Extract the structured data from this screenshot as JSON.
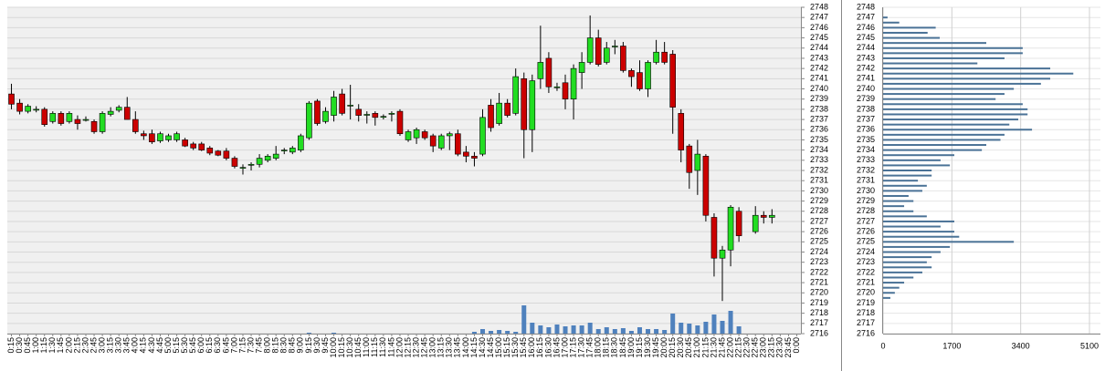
{
  "chart_data": [
    {
      "type": "candlestick",
      "x": [
        "0:15",
        "0:30",
        "0:45",
        "1:00",
        "1:15",
        "1:30",
        "1:45",
        "2:00",
        "2:15",
        "2:30",
        "2:45",
        "3:00",
        "3:15",
        "3:30",
        "3:45",
        "4:00",
        "4:15",
        "4:30",
        "4:45",
        "5:00",
        "5:15",
        "5:30",
        "5:45",
        "6:00",
        "6:15",
        "6:30",
        "6:45",
        "7:00",
        "7:15",
        "7:30",
        "7:45",
        "8:00",
        "8:15",
        "8:30",
        "8:45",
        "9:00",
        "9:15",
        "9:30",
        "9:45",
        "10:00",
        "10:15",
        "10:30",
        "10:45",
        "11:00",
        "11:15",
        "11:30",
        "11:45",
        "12:00",
        "12:15",
        "12:30",
        "12:45",
        "13:00",
        "13:15",
        "13:30",
        "13:45",
        "14:00",
        "14:15",
        "14:30",
        "14:45",
        "15:00",
        "15:15",
        "15:30",
        "15:45",
        "16:00",
        "16:15",
        "16:30",
        "16:45",
        "17:00",
        "17:15",
        "17:30",
        "17:45",
        "18:00",
        "18:15",
        "18:30",
        "18:45",
        "19:00",
        "19:15",
        "19:30",
        "19:45",
        "20:00",
        "20:15",
        "20:30",
        "20:45",
        "21:00",
        "21:15",
        "21:30",
        "21:45",
        "22:00",
        "22:15",
        "22:30",
        "22:45",
        "23:00",
        "23:15",
        "23:30",
        "23:45",
        "0:00"
      ],
      "open": [
        2739.5,
        2738.6,
        2737.8,
        2738,
        2738,
        2736.8,
        2737.6,
        2736.8,
        2737,
        2737,
        2736.8,
        2735.8,
        2737.5,
        2737.9,
        2738.2,
        2737,
        2735.6,
        2735.6,
        2734.9,
        2735,
        2735,
        2735,
        2734.6,
        2734.6,
        2734.2,
        2733.9,
        2733.9,
        2733.2,
        2732.3,
        2732.6,
        2732.6,
        2733,
        2733.2,
        2734,
        2733.8,
        2734,
        2735.2,
        2738.8,
        2736.8,
        2737.4,
        2739.5,
        2738.4,
        2738,
        2737.5,
        2737.6,
        2737.3,
        2737.6,
        2737.8,
        2735,
        2735.2,
        2735.8,
        2735.4,
        2734.2,
        2735.4,
        2735.6,
        2733.8,
        2733.4,
        2733.6,
        2738.4,
        2736.6,
        2738.6,
        2737.6,
        2741,
        2736,
        2741,
        2743,
        2740.2,
        2740.6,
        2739,
        2741.6,
        2742.6,
        2745,
        2742.6,
        2744.2,
        2744.2,
        2741.8,
        2741.6,
        2740,
        2742.6,
        2743.6,
        2743.4,
        2737.6,
        2734.4,
        2732,
        2733.4,
        2727.4,
        2723.4,
        2724.2,
        2728,
        null,
        2726,
        2727.6,
        2727.4,
        null,
        null,
        null
      ],
      "high": [
        2740.5,
        2739,
        2738.5,
        2738.3,
        2738.2,
        2737.8,
        2737.8,
        2737.8,
        2737.4,
        2737.3,
        2737,
        2737.8,
        2738.2,
        2738.4,
        2739.2,
        2737.8,
        2735.9,
        2736,
        2735.8,
        2735.6,
        2735.8,
        2735.2,
        2734.8,
        2734.8,
        2734.4,
        2734,
        2734.2,
        2733.4,
        2732.6,
        2732.8,
        2733.6,
        2733.6,
        2734.4,
        2734.2,
        2734.4,
        2735.6,
        2738.8,
        2739,
        2738.2,
        2739.8,
        2740,
        2740.4,
        2738.5,
        2737.8,
        2737.8,
        2737.5,
        2737.8,
        2738,
        2736,
        2736.2,
        2736,
        2735.6,
        2735.6,
        2735.8,
        2736,
        2734.4,
        2733.8,
        2738,
        2739,
        2739.6,
        2739,
        2742,
        2741.6,
        2741.4,
        2746.2,
        2743.6,
        2740.6,
        2741.4,
        2742.4,
        2743.6,
        2747.2,
        2745.8,
        2744.6,
        2744.8,
        2744.6,
        2742,
        2742.8,
        2742.8,
        2744.8,
        2744.6,
        2743.8,
        2738,
        2734.6,
        2735,
        2733.6,
        2727.8,
        2724.6,
        2728.6,
        2728.4,
        null,
        2728.5,
        2728,
        2728.2,
        null,
        null,
        null
      ],
      "low": [
        2738,
        2737.5,
        2737.6,
        2737.7,
        2736.3,
        2736.6,
        2736.4,
        2736.6,
        2736,
        2736.8,
        2735.6,
        2735.6,
        2737.3,
        2737.7,
        2737,
        2735.6,
        2735,
        2734.6,
        2734.7,
        2734.8,
        2734.8,
        2734.3,
        2734,
        2733.9,
        2733.5,
        2733.4,
        2733,
        2732.2,
        2731.6,
        2732,
        2732.3,
        2732.8,
        2733,
        2733.6,
        2733.6,
        2733.8,
        2735,
        2736.4,
        2736.6,
        2736.8,
        2737.4,
        2737,
        2736.8,
        2736.6,
        2736.4,
        2737,
        2736.8,
        2735.4,
        2734.8,
        2734.6,
        2735,
        2733.8,
        2734,
        2734,
        2733.4,
        2732.8,
        2732.4,
        2733.4,
        2735.8,
        2736.4,
        2737.2,
        2737.4,
        2733.2,
        2733.8,
        2740,
        2739.6,
        2739.8,
        2738,
        2737,
        2740,
        2742.4,
        2742.2,
        2742.4,
        2743.4,
        2741.6,
        2740.2,
        2739.8,
        2739.2,
        2742.4,
        2742.4,
        2735.6,
        2732.8,
        2730.2,
        2729.6,
        2727,
        2721.6,
        2719.2,
        2722.6,
        2725,
        null,
        2725.8,
        2726.8,
        2726.8,
        null,
        null,
        null
      ],
      "close": [
        2738.5,
        2737.8,
        2738.3,
        2738,
        2736.5,
        2737.6,
        2736.6,
        2737.6,
        2736.6,
        2737,
        2735.8,
        2737.6,
        2737.8,
        2738.2,
        2737,
        2735.8,
        2735.4,
        2734.8,
        2735.6,
        2735.4,
        2735.6,
        2734.4,
        2734.2,
        2734,
        2733.7,
        2733.5,
        2733.2,
        2732.4,
        2732.3,
        2732.6,
        2733.2,
        2733.4,
        2733.6,
        2734,
        2734.2,
        2735.4,
        2738.6,
        2736.6,
        2737.8,
        2739.2,
        2737.6,
        2738.4,
        2737.4,
        2737.5,
        2737.2,
        2737.3,
        2737.6,
        2735.6,
        2735.8,
        2736,
        2735.2,
        2734.4,
        2735.4,
        2735.6,
        2733.6,
        2733.4,
        2733.2,
        2737.2,
        2736.2,
        2738.6,
        2737.4,
        2741.2,
        2736,
        2740.8,
        2742.6,
        2740.2,
        2740.2,
        2739,
        2742,
        2742.6,
        2745,
        2742.4,
        2744,
        2744.2,
        2741.8,
        2741.2,
        2740,
        2742.6,
        2743.6,
        2742.6,
        2738.2,
        2734,
        2731.8,
        2733.6,
        2727.6,
        2723.4,
        2724.2,
        2728.4,
        2725.6,
        null,
        2727.6,
        2727.4,
        2727.6,
        null,
        null,
        null
      ],
      "volume": [
        null,
        null,
        null,
        null,
        null,
        null,
        null,
        null,
        null,
        null,
        null,
        null,
        null,
        null,
        null,
        null,
        null,
        null,
        null,
        null,
        null,
        null,
        null,
        null,
        null,
        null,
        null,
        null,
        null,
        null,
        null,
        null,
        null,
        null,
        null,
        null,
        1,
        null,
        null,
        1,
        null,
        null,
        null,
        null,
        null,
        null,
        null,
        null,
        null,
        null,
        null,
        null,
        null,
        null,
        null,
        null,
        2,
        5,
        3,
        4,
        3,
        2,
        31,
        12,
        9,
        7,
        10,
        8,
        9,
        9,
        12,
        5,
        7,
        5,
        6,
        3,
        7,
        5,
        5,
        4,
        22,
        12,
        11,
        9,
        13,
        21,
        14,
        25,
        8,
        null,
        null,
        null,
        null,
        null,
        null,
        null
      ],
      "up_color": "#22dd22",
      "down_color": "#cc0000",
      "volume_color": "#4f81bd",
      "ylim": [
        2716,
        2748
      ],
      "yticks": [
        2716,
        2717,
        2718,
        2719,
        2720,
        2721,
        2722,
        2723,
        2724,
        2725,
        2726,
        2727,
        2728,
        2729,
        2730,
        2731,
        2732,
        2733,
        2734,
        2735,
        2736,
        2737,
        2738,
        2739,
        2740,
        2741,
        2742,
        2743,
        2744,
        2745,
        2746,
        2747,
        2748
      ],
      "grid": true
    },
    {
      "type": "barh",
      "y": [
        2719.5,
        2720,
        2720.5,
        2721,
        2721.5,
        2722,
        2722.5,
        2723,
        2723.5,
        2724,
        2724.5,
        2725,
        2725.5,
        2726,
        2726.5,
        2727,
        2727.5,
        2728,
        2728.5,
        2729,
        2729.5,
        2730,
        2730.5,
        2731,
        2731.5,
        2732,
        2732.5,
        2733,
        2733.5,
        2734,
        2734.5,
        2735,
        2735.5,
        2736,
        2736.5,
        2737,
        2737.5,
        2738,
        2738.5,
        2739,
        2739.5,
        2740,
        2740.5,
        2741,
        2741.5,
        2742,
        2742.5,
        2743,
        2743.5,
        2744,
        2744.5,
        2745,
        2745.5,
        2746,
        2746.5,
        2747
      ],
      "values": [
        180,
        290,
        400,
        520,
        750,
        970,
        1200,
        1080,
        1200,
        1420,
        1650,
        3230,
        1880,
        1760,
        1420,
        1760,
        1080,
        750,
        520,
        750,
        630,
        970,
        1080,
        860,
        1200,
        1200,
        1650,
        1420,
        1760,
        2440,
        2550,
        2900,
        3000,
        3680,
        3120,
        3340,
        3570,
        3570,
        3450,
        2780,
        3000,
        3230,
        3900,
        4130,
        4700,
        4130,
        2330,
        3000,
        3450,
        3450,
        2550,
        1400,
        1100,
        1300,
        400,
        110
      ],
      "color": "#4a7296",
      "ylim": [
        2716,
        2748
      ],
      "yticks": [
        2716,
        2717,
        2718,
        2719,
        2720,
        2721,
        2722,
        2723,
        2724,
        2725,
        2726,
        2727,
        2728,
        2729,
        2730,
        2731,
        2732,
        2733,
        2734,
        2735,
        2736,
        2737,
        2738,
        2739,
        2740,
        2741,
        2742,
        2743,
        2744,
        2745,
        2746,
        2747,
        2748
      ],
      "xlim": [
        0,
        5100
      ],
      "xticks": [
        0,
        1700,
        3400,
        5100
      ],
      "grid": true
    }
  ]
}
